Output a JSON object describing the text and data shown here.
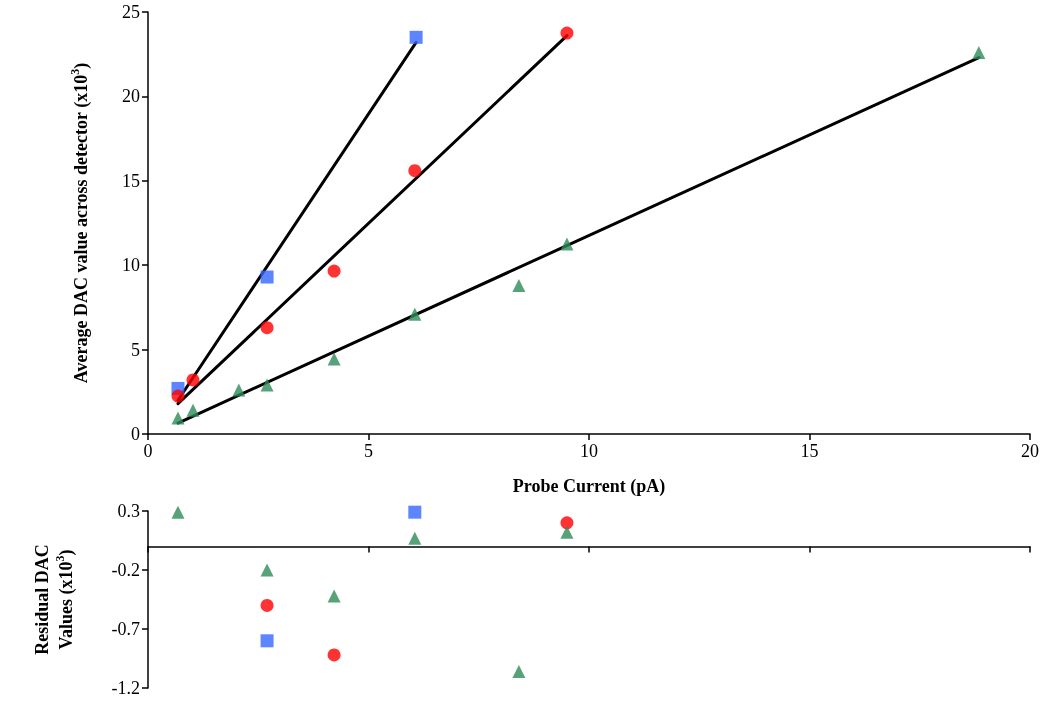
{
  "chart_data": [
    {
      "type": "scatter",
      "xlabel": "Probe Current (pA)",
      "ylabel": "Average DAC value across detector (x10$^{3}$)",
      "xlim": [
        0,
        20
      ],
      "xticks": [
        0,
        5,
        10,
        15,
        20
      ],
      "ylim": [
        0,
        25
      ],
      "yticks": [
        0,
        5,
        10,
        15,
        20,
        25
      ],
      "grid": false,
      "series": [
        {
          "color": "#3366ff",
          "marker": "square",
          "x": [
            0.68,
            2.7,
            6.08
          ],
          "values": [
            2.7,
            9.3,
            23.5
          ]
        },
        {
          "color": "#ff0000",
          "marker": "circle",
          "x": [
            0.68,
            1.02,
            2.7,
            4.22,
            6.05,
            9.5
          ],
          "values": [
            2.25,
            3.2,
            6.3,
            9.65,
            15.6,
            23.75
          ]
        },
        {
          "color": "#2e8b57",
          "marker": "triangle",
          "x": [
            0.68,
            1.02,
            2.06,
            2.7,
            4.22,
            6.05,
            8.41,
            9.5,
            18.84
          ],
          "values": [
            0.95,
            1.4,
            2.6,
            2.9,
            4.45,
            7.1,
            8.8,
            11.25,
            22.6
          ]
        },
        {
          "type": "line",
          "color": "#000000",
          "marker": "none",
          "x": [
            0.68,
            6.08
          ],
          "values": [
            2.0,
            23.2
          ]
        },
        {
          "type": "line",
          "color": "#000000",
          "marker": "none",
          "x": [
            0.68,
            9.5
          ],
          "values": [
            1.8,
            23.6
          ]
        },
        {
          "type": "line",
          "color": "#000000",
          "marker": "none",
          "x": [
            0.68,
            18.84
          ],
          "values": [
            0.65,
            22.3
          ]
        }
      ]
    },
    {
      "type": "scatter",
      "ylabel": "Residual DAC Values (x10$^{3}$)",
      "xlim": [
        0,
        20
      ],
      "xticks": [
        {
          "value": 0,
          "label": null
        },
        {
          "value": 5,
          "label": null
        },
        {
          "value": 10,
          "label": null
        },
        {
          "value": 15,
          "label": null
        },
        {
          "value": 20,
          "label": null
        }
      ],
      "ylim": [
        -1.2,
        0.3
      ],
      "yticks": [
        0.3,
        -0.2,
        -0.7,
        -1.2
      ],
      "tick_labels": "y",
      "grid": false,
      "series": [
        {
          "color": "#3366ff",
          "marker": "square",
          "x": [
            2.7,
            6.05
          ],
          "values": [
            -0.8,
            0.29
          ]
        },
        {
          "color": "#ff0000",
          "marker": "circle",
          "x": [
            2.7,
            4.22,
            9.5
          ],
          "values": [
            -0.5,
            -0.92,
            0.2
          ]
        },
        {
          "color": "#2e8b57",
          "marker": "triangle",
          "x": [
            0.68,
            2.7,
            4.22,
            6.05,
            8.41,
            9.5
          ],
          "values": [
            0.29,
            -0.2,
            -0.42,
            0.07,
            -1.06,
            0.12
          ]
        }
      ]
    }
  ]
}
